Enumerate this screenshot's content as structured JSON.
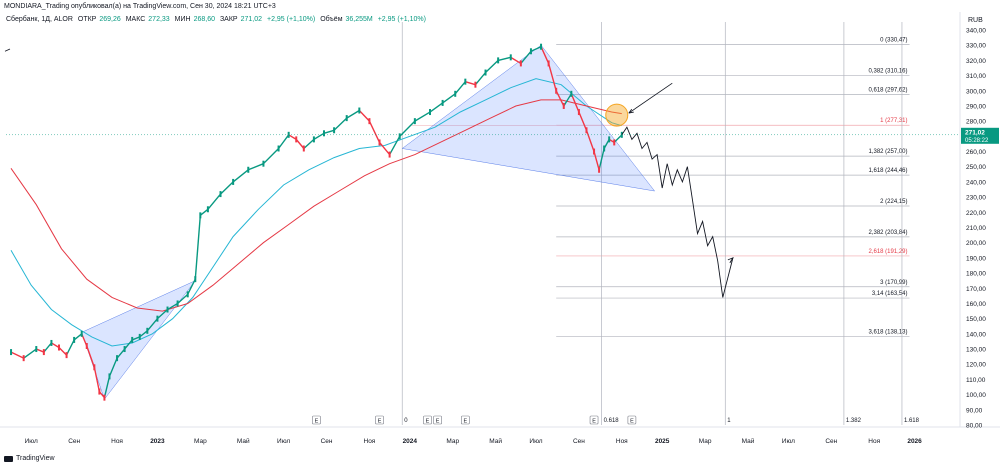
{
  "header": {
    "publisher_line": "MONDIARA_Trading опубликовал(а) на TradingView.com, Сен 30, 2024 18:21 UTC+3",
    "symbol_line": "Сбербанк, 1Д, ALOR",
    "open_label": "ОТКР",
    "open_value": "269,26",
    "high_label": "МАКС",
    "high_value": "272,33",
    "low_label": "МИН",
    "low_value": "268,60",
    "close_label": "ЗАКР",
    "close_value": "271,02",
    "change": "+2,95 (+1,10%)",
    "volume_label": "Объём",
    "volume_value": "36,255M",
    "volume_change": "+2,95 (+1,10%)"
  },
  "currency": "RUB",
  "footer": {
    "brand": "TradingView"
  },
  "colors": {
    "fast_ma": "#26b6d4",
    "slow_ma": "#e53945",
    "triangle_fill": "#2962ff",
    "highlight": "#f5a623",
    "price_tag": "#089981"
  },
  "chart_data": {
    "type": "line",
    "title": "",
    "xlabel": "",
    "ylabel": "",
    "ylim": [
      80,
      340
    ],
    "y_ticks": [
      "340,00",
      "330,00",
      "320,00",
      "310,00",
      "300,00",
      "290,00",
      "280,00",
      "270,00",
      "260,00",
      "250,00",
      "240,00",
      "230,00",
      "220,00",
      "210,00",
      "200,00",
      "190,00",
      "180,00",
      "170,00",
      "160,00",
      "150,00",
      "140,00",
      "130,00",
      "120,00",
      "110,00",
      "100,00",
      "90,00",
      "80,00"
    ],
    "x_ticks": [
      "Июл",
      "Сен",
      "Ноя",
      "2023",
      "Мар",
      "Май",
      "Июл",
      "Сен",
      "Ноя",
      "2024",
      "Мар",
      "Май",
      "Июл",
      "Сен",
      "Ноя",
      "2025",
      "Мар",
      "Май",
      "Июл",
      "Сен",
      "Ноя",
      "2026"
    ],
    "x_ticks_bold": [
      "2023",
      "2024",
      "2025",
      "2026"
    ],
    "event_markers": [
      "E",
      "E",
      "E",
      "E",
      "E",
      "E",
      "E"
    ],
    "time_fib_labels": [
      "0",
      "0.618",
      "1",
      "1.382",
      "1.618"
    ],
    "last_price": {
      "value": "271,02",
      "countdown": "05:28:22"
    },
    "fib_levels": [
      {
        "ratio": "0",
        "label": "0 (330,47)",
        "value": 330.47,
        "color": "#131722"
      },
      {
        "ratio": "0,382",
        "label": "0,382 (310,16)",
        "value": 310.16,
        "color": "#131722"
      },
      {
        "ratio": "0,618",
        "label": "0,618 (297,62)",
        "value": 297.62,
        "color": "#131722"
      },
      {
        "ratio": "1",
        "label": "1 (277,31)",
        "value": 277.31,
        "color": "#e53945"
      },
      {
        "ratio": "1,382",
        "label": "1,382 (257,00)",
        "value": 257.0,
        "color": "#131722"
      },
      {
        "ratio": "1,618",
        "label": "1,618 (244,46)",
        "value": 244.46,
        "color": "#131722"
      },
      {
        "ratio": "2",
        "label": "2 (224,15)",
        "value": 224.15,
        "color": "#131722"
      },
      {
        "ratio": "2,382",
        "label": "2,382 (203,84)",
        "value": 203.84,
        "color": "#131722"
      },
      {
        "ratio": "2,618",
        "label": "2,618 (191,29)",
        "value": 191.29,
        "color": "#e53945"
      },
      {
        "ratio": "3",
        "label": "3 (170,99)",
        "value": 170.99,
        "color": "#131722"
      },
      {
        "ratio": "3,14",
        "label": "3,14 (163,54)",
        "value": 163.54,
        "color": "#131722"
      },
      {
        "ratio": "3,618",
        "label": "3,618 (138,13)",
        "value": 138.13,
        "color": "#131722"
      }
    ],
    "series": [
      {
        "kind": "price",
        "values": [
          [
            2022.42,
            128
          ],
          [
            2022.47,
            124
          ],
          [
            2022.52,
            130
          ],
          [
            2022.55,
            128
          ],
          [
            2022.58,
            134
          ],
          [
            2022.61,
            131
          ],
          [
            2022.64,
            126
          ],
          [
            2022.67,
            136
          ],
          [
            2022.7,
            140
          ],
          [
            2022.72,
            132
          ],
          [
            2022.75,
            118
          ],
          [
            2022.77,
            102
          ],
          [
            2022.79,
            98
          ],
          [
            2022.81,
            112
          ],
          [
            2022.84,
            124
          ],
          [
            2022.87,
            130
          ],
          [
            2022.9,
            136
          ],
          [
            2022.93,
            138
          ],
          [
            2022.96,
            142
          ],
          [
            2023.0,
            150
          ],
          [
            2023.04,
            156
          ],
          [
            2023.08,
            160
          ],
          [
            2023.12,
            166
          ],
          [
            2023.15,
            176
          ],
          [
            2023.17,
            218
          ],
          [
            2023.2,
            222
          ],
          [
            2023.25,
            232
          ],
          [
            2023.3,
            240
          ],
          [
            2023.36,
            248
          ],
          [
            2023.42,
            252
          ],
          [
            2023.48,
            262
          ],
          [
            2023.52,
            271
          ],
          [
            2023.55,
            268
          ],
          [
            2023.58,
            262
          ],
          [
            2023.62,
            268
          ],
          [
            2023.66,
            272
          ],
          [
            2023.7,
            274
          ],
          [
            2023.75,
            282
          ],
          [
            2023.8,
            287
          ],
          [
            2023.84,
            280
          ],
          [
            2023.88,
            266
          ],
          [
            2023.92,
            258
          ],
          [
            2023.96,
            270
          ],
          [
            2024.02,
            280
          ],
          [
            2024.08,
            286
          ],
          [
            2024.13,
            292
          ],
          [
            2024.18,
            298
          ],
          [
            2024.22,
            306
          ],
          [
            2024.26,
            304
          ],
          [
            2024.3,
            312
          ],
          [
            2024.35,
            320
          ],
          [
            2024.4,
            322
          ],
          [
            2024.44,
            318
          ],
          [
            2024.48,
            326
          ],
          [
            2024.52,
            329
          ],
          [
            2024.55,
            318
          ],
          [
            2024.58,
            300
          ],
          [
            2024.61,
            290
          ],
          [
            2024.64,
            298
          ],
          [
            2024.67,
            286
          ],
          [
            2024.7,
            274
          ],
          [
            2024.73,
            260
          ],
          [
            2024.75,
            248
          ],
          [
            2024.77,
            262
          ],
          [
            2024.79,
            268
          ],
          [
            2024.81,
            266
          ],
          [
            2024.84,
            271
          ]
        ]
      },
      {
        "kind": "forecast",
        "values": [
          [
            2024.84,
            271
          ],
          [
            2024.86,
            276
          ],
          [
            2024.88,
            268
          ],
          [
            2024.9,
            272
          ],
          [
            2024.92,
            262
          ],
          [
            2024.94,
            266
          ],
          [
            2024.96,
            255
          ],
          [
            2024.98,
            258
          ],
          [
            2025.0,
            236
          ],
          [
            2025.02,
            252
          ],
          [
            2025.04,
            238
          ],
          [
            2025.06,
            248
          ],
          [
            2025.08,
            240
          ],
          [
            2025.1,
            250
          ],
          [
            2025.12,
            228
          ],
          [
            2025.14,
            206
          ],
          [
            2025.16,
            214
          ],
          [
            2025.18,
            198
          ],
          [
            2025.2,
            204
          ],
          [
            2025.22,
            188
          ],
          [
            2025.24,
            164
          ],
          [
            2025.28,
            190
          ]
        ]
      },
      {
        "kind": "ma_fast",
        "values": [
          [
            2022.42,
            195
          ],
          [
            2022.5,
            172
          ],
          [
            2022.58,
            156
          ],
          [
            2022.66,
            146
          ],
          [
            2022.74,
            138
          ],
          [
            2022.82,
            132
          ],
          [
            2022.9,
            134
          ],
          [
            2022.98,
            140
          ],
          [
            2023.06,
            150
          ],
          [
            2023.14,
            164
          ],
          [
            2023.22,
            184
          ],
          [
            2023.3,
            204
          ],
          [
            2023.4,
            222
          ],
          [
            2023.5,
            238
          ],
          [
            2023.6,
            248
          ],
          [
            2023.7,
            256
          ],
          [
            2023.8,
            262
          ],
          [
            2023.9,
            264
          ],
          [
            2024.0,
            270
          ],
          [
            2024.1,
            276
          ],
          [
            2024.2,
            286
          ],
          [
            2024.3,
            294
          ],
          [
            2024.4,
            302
          ],
          [
            2024.5,
            308
          ],
          [
            2024.6,
            304
          ],
          [
            2024.7,
            290
          ],
          [
            2024.8,
            279
          ],
          [
            2024.84,
            277
          ]
        ]
      },
      {
        "kind": "ma_slow",
        "values": [
          [
            2022.42,
            249
          ],
          [
            2022.52,
            225
          ],
          [
            2022.62,
            196
          ],
          [
            2022.72,
            176
          ],
          [
            2022.82,
            164
          ],
          [
            2022.92,
            157
          ],
          [
            2023.02,
            155
          ],
          [
            2023.12,
            160
          ],
          [
            2023.22,
            172
          ],
          [
            2023.32,
            186
          ],
          [
            2023.42,
            200
          ],
          [
            2023.52,
            212
          ],
          [
            2023.62,
            224
          ],
          [
            2023.72,
            234
          ],
          [
            2023.82,
            244
          ],
          [
            2023.92,
            252
          ],
          [
            2024.02,
            258
          ],
          [
            2024.12,
            266
          ],
          [
            2024.22,
            274
          ],
          [
            2024.32,
            282
          ],
          [
            2024.42,
            290
          ],
          [
            2024.52,
            294
          ],
          [
            2024.6,
            294
          ],
          [
            2024.7,
            290
          ],
          [
            2024.8,
            286
          ],
          [
            2024.84,
            285
          ]
        ]
      }
    ]
  }
}
